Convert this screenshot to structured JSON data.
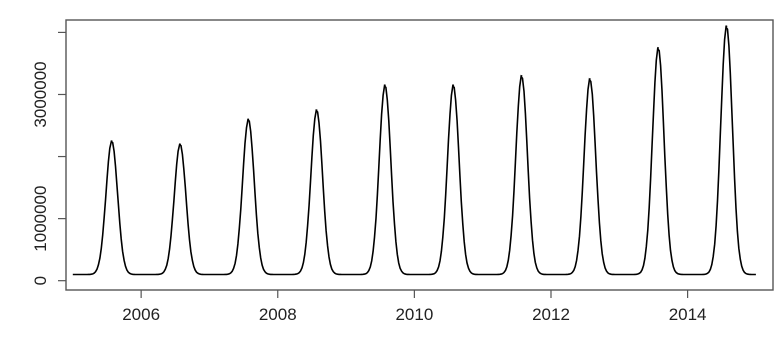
{
  "chart_data": {
    "type": "line",
    "title": "",
    "xlabel": "",
    "ylabel": "",
    "xlim": [
      2004.9,
      2015.25
    ],
    "ylim": [
      -150000,
      4200000
    ],
    "x_ticks": [
      2006,
      2008,
      2010,
      2012,
      2014
    ],
    "y_ticks": [
      0,
      1000000,
      2000000,
      3000000,
      4000000
    ],
    "y_tick_labels": [
      "0",
      "1000000",
      "",
      "3000000",
      ""
    ],
    "x_tick_labels": [
      "2006",
      "2008",
      "2010",
      "2012",
      "2014"
    ],
    "grid": false,
    "series": [
      {
        "color": "#000000",
        "peaks": [
          {
            "year": 2005,
            "peak": 2250000
          },
          {
            "year": 2006,
            "peak": 2200000
          },
          {
            "year": 2007,
            "peak": 2600000
          },
          {
            "year": 2008,
            "peak": 2750000
          },
          {
            "year": 2009,
            "peak": 3150000
          },
          {
            "year": 2010,
            "peak": 3150000
          },
          {
            "year": 2011,
            "peak": 3300000
          },
          {
            "year": 2012,
            "peak": 3250000
          },
          {
            "year": 2013,
            "peak": 3750000
          },
          {
            "year": 2014,
            "peak": 4100000
          }
        ],
        "x_start": 2005.0,
        "x_end": 2015.0,
        "trough": 100000
      }
    ]
  }
}
